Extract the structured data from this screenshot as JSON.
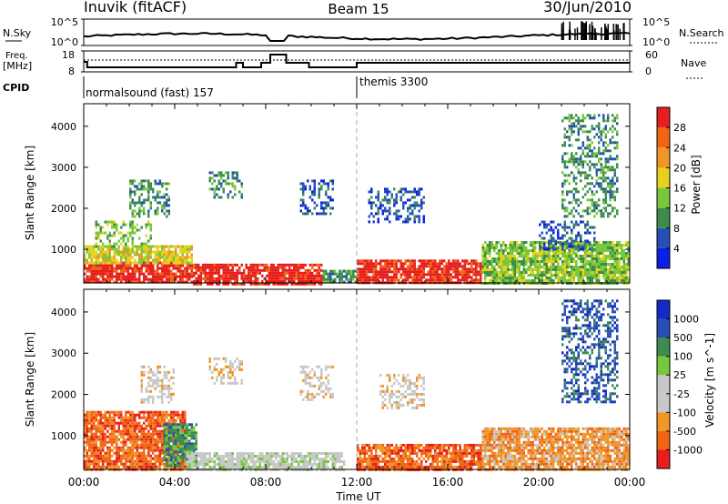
{
  "header": {
    "station": "Inuvik (fitACF)",
    "beam": "Beam 15",
    "date": "30/Jun/2010"
  },
  "noise_panel": {
    "left_label": "N.Sky",
    "right_label": "N.Search",
    "left_ticks": [
      "10^5",
      "10^0"
    ],
    "right_ticks": [
      "10^5",
      "10^0"
    ]
  },
  "freq_panel": {
    "left_label_line1": "Freq.",
    "left_label_line2": "[MHz]",
    "right_label": "Nave",
    "left_ticks": [
      "18",
      "8"
    ],
    "right_ticks": [
      "60",
      "0"
    ]
  },
  "cpid_panel": {
    "label": "CPID",
    "segments": [
      "normalsound (fast) 157",
      "themis 3300"
    ],
    "change_hour": 12.0
  },
  "colors": {
    "scale_power": [
      "#0a1ee6",
      "#2850b4",
      "#3c8c50",
      "#78c83c",
      "#e6d21e",
      "#f09628",
      "#f06414",
      "#e61e1e"
    ],
    "scale_velocity": [
      "#e61e1e",
      "#f06414",
      "#f09628",
      "#c8c8c8",
      "#c8c8c8",
      "#78c83c",
      "#3c8c50",
      "#2850b4",
      "#1428c8"
    ]
  },
  "chart_data": [
    {
      "type": "heatmap",
      "quantity": "Power",
      "ylabel": "Slant Range [km]",
      "colorbar_label": "Power [dB]",
      "colorbar_ticks": [
        "4",
        "8",
        "12",
        "16",
        "20",
        "24",
        "28"
      ],
      "x_range_hours": [
        0,
        24
      ],
      "y_range_km": [
        180,
        4550
      ],
      "y_ticks": [
        "1000",
        "2000",
        "3000",
        "4000"
      ],
      "regions": [
        {
          "t0": 0.0,
          "t1": 4.8,
          "r0": 180,
          "r1": 700,
          "level": 7
        },
        {
          "t0": 0.0,
          "t1": 4.8,
          "r0": 700,
          "r1": 1100,
          "level": 4
        },
        {
          "t0": 0.5,
          "t1": 3.0,
          "r0": 1100,
          "r1": 1700,
          "level": 3
        },
        {
          "t0": 2.0,
          "t1": 3.8,
          "r0": 1800,
          "r1": 2700,
          "level": 2
        },
        {
          "t0": 4.8,
          "t1": 10.5,
          "r0": 180,
          "r1": 650,
          "level": 7
        },
        {
          "t0": 5.5,
          "t1": 7.0,
          "r0": 2300,
          "r1": 2900,
          "level": 2
        },
        {
          "t0": 9.5,
          "t1": 11.0,
          "r0": 1900,
          "r1": 2700,
          "level": 1
        },
        {
          "t0": 10.5,
          "t1": 12.0,
          "r0": 180,
          "r1": 500,
          "level": 2
        },
        {
          "t0": 12.0,
          "t1": 17.5,
          "r0": 180,
          "r1": 750,
          "level": 7
        },
        {
          "t0": 12.5,
          "t1": 15.0,
          "r0": 1700,
          "r1": 2500,
          "level": 1
        },
        {
          "t0": 17.5,
          "t1": 24.0,
          "r0": 180,
          "r1": 1200,
          "level": 3
        },
        {
          "t0": 20.0,
          "t1": 22.5,
          "r0": 1000,
          "r1": 1700,
          "level": 1
        },
        {
          "t0": 21.0,
          "t1": 23.5,
          "r0": 1800,
          "r1": 4300,
          "level": 2
        }
      ]
    },
    {
      "type": "heatmap",
      "quantity": "Velocity",
      "ylabel": "Slant Range [km]",
      "xlabel": "Time UT",
      "colorbar_label": "Velocity [m s^-1]",
      "colorbar_ticks": [
        "-1000",
        "-500",
        "-100",
        "-25",
        "25",
        "100",
        "500",
        "1000"
      ],
      "x_range_hours": [
        0,
        24
      ],
      "x_ticks": [
        "00:00",
        "04:00",
        "08:00",
        "12:00",
        "16:00",
        "20:00",
        "00:00"
      ],
      "y_range_km": [
        180,
        4550
      ],
      "y_ticks": [
        "1000",
        "2000",
        "3000",
        "4000"
      ],
      "regions": [
        {
          "t0": 0.0,
          "t1": 4.5,
          "r0": 180,
          "r1": 1600,
          "level": 1
        },
        {
          "t0": 2.5,
          "t1": 4.0,
          "r0": 1800,
          "r1": 2700,
          "level": 3
        },
        {
          "t0": 3.5,
          "t1": 5.0,
          "r0": 300,
          "r1": 1300,
          "level": 6
        },
        {
          "t0": 4.5,
          "t1": 11.5,
          "r0": 180,
          "r1": 600,
          "level": 4
        },
        {
          "t0": 5.5,
          "t1": 7.0,
          "r0": 2300,
          "r1": 2900,
          "level": 3
        },
        {
          "t0": 9.5,
          "t1": 11.0,
          "r0": 1900,
          "r1": 2700,
          "level": 3
        },
        {
          "t0": 12.0,
          "t1": 17.5,
          "r0": 180,
          "r1": 800,
          "level": 1
        },
        {
          "t0": 13.0,
          "t1": 15.0,
          "r0": 1700,
          "r1": 2500,
          "level": 3
        },
        {
          "t0": 17.5,
          "t1": 24.0,
          "r0": 180,
          "r1": 1200,
          "level": 2
        },
        {
          "t0": 21.0,
          "t1": 23.5,
          "r0": 1800,
          "r1": 4300,
          "level": 7
        }
      ]
    }
  ]
}
